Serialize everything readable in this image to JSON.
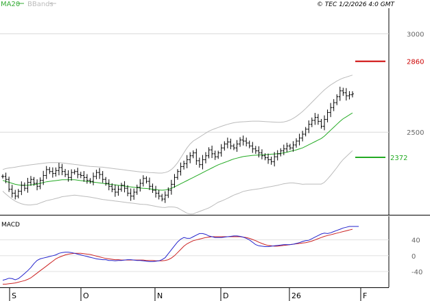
{
  "header": {
    "legend": [
      {
        "label": "MA20",
        "color": "#33aa33"
      },
      {
        "label": "BBands",
        "color": "#bbbbbb"
      }
    ],
    "source": "© TEC 1/2/2026 4:0 GMT"
  },
  "colors": {
    "candle": "#000000",
    "ma20": "#22aa22",
    "bbands": "#bbbbbb",
    "resistance": "#cc0000",
    "support": "#22aa22",
    "macd": "#2222cc",
    "signal": "#cc2222",
    "grid": "#d8d8d8",
    "axis": "#000000"
  },
  "chart_data": [
    {
      "type": "candlestick",
      "title": "",
      "x_labels": [
        "S",
        "O",
        "N",
        "D",
        "26",
        "F"
      ],
      "ylim": [
        2080,
        3130
      ],
      "yticks": [
        2500,
        3000
      ],
      "ytick_labels": [
        "2500",
        "3000"
      ],
      "levels": [
        {
          "name": "resistance",
          "value": 2860,
          "label": "2860"
        },
        {
          "name": "support",
          "value": 2372,
          "label": "2372"
        }
      ],
      "closes": [
        2275,
        2260,
        2210,
        2190,
        2175,
        2200,
        2230,
        2215,
        2245,
        2260,
        2240,
        2225,
        2255,
        2280,
        2310,
        2300,
        2290,
        2305,
        2320,
        2300,
        2285,
        2270,
        2295,
        2300,
        2285,
        2280,
        2270,
        2255,
        2250,
        2275,
        2295,
        2285,
        2260,
        2240,
        2225,
        2210,
        2195,
        2210,
        2230,
        2215,
        2190,
        2175,
        2195,
        2220,
        2240,
        2265,
        2250,
        2225,
        2205,
        2190,
        2175,
        2160,
        2180,
        2205,
        2235,
        2270,
        2300,
        2325,
        2340,
        2360,
        2380,
        2395,
        2355,
        2335,
        2360,
        2380,
        2410,
        2390,
        2375,
        2395,
        2420,
        2440,
        2450,
        2430,
        2420,
        2440,
        2460,
        2455,
        2445,
        2430,
        2415,
        2405,
        2395,
        2380,
        2370,
        2360,
        2350,
        2375,
        2390,
        2405,
        2415,
        2430,
        2420,
        2435,
        2455,
        2470,
        2490,
        2515,
        2540,
        2560,
        2575,
        2555,
        2530,
        2565,
        2600,
        2625,
        2650,
        2680,
        2710,
        2700,
        2685,
        2690,
        2695
      ],
      "ma20": [
        2255,
        2250,
        2245,
        2240,
        2235,
        2232,
        2230,
        2230,
        2230,
        2232,
        2234,
        2236,
        2240,
        2244,
        2248,
        2250,
        2252,
        2254,
        2256,
        2258,
        2258,
        2258,
        2258,
        2258,
        2256,
        2254,
        2252,
        2250,
        2248,
        2246,
        2244,
        2242,
        2240,
        2238,
        2236,
        2234,
        2232,
        2230,
        2228,
        2226,
        2224,
        2222,
        2220,
        2218,
        2216,
        2215,
        2214,
        2212,
        2210,
        2208,
        2206,
        2205,
        2206,
        2210,
        2215,
        2222,
        2230,
        2238,
        2246,
        2254,
        2262,
        2270,
        2278,
        2286,
        2294,
        2302,
        2310,
        2318,
        2326,
        2334,
        2340,
        2346,
        2352,
        2358,
        2364,
        2368,
        2372,
        2376,
        2378,
        2380,
        2382,
        2383,
        2384,
        2385,
        2386,
        2387,
        2388,
        2389,
        2390,
        2392,
        2395,
        2398,
        2402,
        2406,
        2410,
        2415,
        2420,
        2428,
        2436,
        2444,
        2452,
        2460,
        2468,
        2480,
        2495,
        2510,
        2525,
        2540,
        2555,
        2568,
        2578,
        2588,
        2598
      ],
      "bb_upper": [
        2310,
        2315,
        2318,
        2320,
        2322,
        2325,
        2328,
        2330,
        2332,
        2334,
        2336,
        2338,
        2340,
        2342,
        2344,
        2345,
        2345,
        2345,
        2345,
        2344,
        2342,
        2340,
        2338,
        2336,
        2334,
        2332,
        2330,
        2328,
        2326,
        2325,
        2324,
        2323,
        2322,
        2320,
        2318,
        2316,
        2314,
        2312,
        2310,
        2308,
        2306,
        2304,
        2302,
        2300,
        2298,
        2297,
        2296,
        2295,
        2294,
        2293,
        2292,
        2292,
        2295,
        2300,
        2310,
        2325,
        2345,
        2370,
        2395,
        2420,
        2440,
        2455,
        2465,
        2475,
        2485,
        2495,
        2505,
        2512,
        2518,
        2524,
        2530,
        2535,
        2540,
        2544,
        2548,
        2550,
        2552,
        2553,
        2554,
        2555,
        2556,
        2556,
        2556,
        2555,
        2554,
        2553,
        2552,
        2551,
        2550,
        2550,
        2552,
        2556,
        2562,
        2570,
        2580,
        2592,
        2605,
        2620,
        2636,
        2652,
        2668,
        2684,
        2700,
        2715,
        2728,
        2740,
        2750,
        2760,
        2768,
        2775,
        2780,
        2785,
        2790
      ],
      "bb_lower": [
        2200,
        2185,
        2172,
        2160,
        2150,
        2142,
        2136,
        2132,
        2130,
        2130,
        2132,
        2134,
        2140,
        2146,
        2152,
        2155,
        2159,
        2163,
        2167,
        2172,
        2174,
        2176,
        2178,
        2180,
        2178,
        2176,
        2174,
        2172,
        2170,
        2167,
        2164,
        2161,
        2158,
        2156,
        2154,
        2152,
        2150,
        2148,
        2146,
        2144,
        2142,
        2140,
        2138,
        2136,
        2134,
        2133,
        2132,
        2129,
        2126,
        2123,
        2120,
        2118,
        2117,
        2120,
        2120,
        2119,
        2115,
        2106,
        2097,
        2088,
        2084,
        2085,
        2091,
        2097,
        2103,
        2109,
        2115,
        2124,
        2134,
        2144,
        2150,
        2157,
        2164,
        2172,
        2180,
        2186,
        2192,
        2199,
        2202,
        2205,
        2208,
        2210,
        2212,
        2215,
        2218,
        2221,
        2224,
        2227,
        2230,
        2234,
        2238,
        2240,
        2242,
        2242,
        2240,
        2238,
        2235,
        2236,
        2236,
        2236,
        2236,
        2236,
        2236,
        2245,
        2262,
        2280,
        2300,
        2320,
        2342,
        2361,
        2376,
        2391,
        2406
      ],
      "y_label_units": "price"
    },
    {
      "type": "line",
      "title": "MACD",
      "ylim": [
        -80,
        100
      ],
      "yticks": [
        40,
        0,
        -40
      ],
      "ytick_labels": [
        "40",
        "0",
        "-40"
      ],
      "series": [
        {
          "name": "MACD",
          "color": "#2222cc",
          "values": [
            -62,
            -60,
            -57,
            -58,
            -61,
            -58,
            -52,
            -45,
            -38,
            -30,
            -20,
            -12,
            -8,
            -6,
            -4,
            -2,
            0,
            2,
            6,
            8,
            9,
            9,
            8,
            6,
            4,
            2,
            0,
            -2,
            -4,
            -6,
            -8,
            -9,
            -10,
            -10,
            -12,
            -12,
            -13,
            -12,
            -12,
            -11,
            -10,
            -10,
            -11,
            -12,
            -12,
            -13,
            -14,
            -15,
            -15,
            -14,
            -13,
            -10,
            -5,
            5,
            15,
            25,
            35,
            42,
            46,
            44,
            44,
            48,
            52,
            56,
            56,
            54,
            50,
            48,
            46,
            46,
            46,
            47,
            48,
            49,
            50,
            50,
            49,
            47,
            44,
            40,
            34,
            28,
            25,
            24,
            23,
            23,
            24,
            25,
            26,
            27,
            28,
            28,
            28,
            29,
            31,
            33,
            36,
            38,
            39,
            43,
            47,
            51,
            55,
            57,
            56,
            58,
            61,
            64,
            67,
            70,
            72,
            74,
            74,
            74,
            74
          ]
        },
        {
          "name": "Signal",
          "color": "#cc2222",
          "values": [
            -72,
            -72,
            -71,
            -70,
            -69,
            -67,
            -65,
            -63,
            -60,
            -56,
            -50,
            -44,
            -38,
            -32,
            -26,
            -20,
            -14,
            -8,
            -4,
            -1,
            2,
            4,
            5,
            6,
            6,
            6,
            5,
            4,
            3,
            1,
            -1,
            -3,
            -5,
            -7,
            -8,
            -9,
            -10,
            -10,
            -11,
            -11,
            -11,
            -11,
            -11,
            -11,
            -11,
            -11,
            -12,
            -12,
            -12,
            -13,
            -13,
            -13,
            -12,
            -10,
            -6,
            0,
            8,
            16,
            24,
            30,
            34,
            38,
            40,
            42,
            44,
            46,
            47,
            48,
            48,
            48,
            48,
            48,
            48,
            48,
            48,
            48,
            48,
            47,
            46,
            44,
            41,
            38,
            34,
            31,
            28,
            26,
            25,
            24,
            24,
            25,
            26,
            27,
            28,
            29,
            30,
            31,
            32,
            33,
            35,
            37,
            40,
            43,
            46,
            49,
            51,
            53,
            55,
            57,
            59,
            61,
            63,
            65,
            67
          ]
        }
      ]
    }
  ],
  "axis": {
    "price_labels": [
      "3000",
      "2500"
    ],
    "level_labels": [
      "2860",
      "2372"
    ],
    "macd_labels": [
      "40",
      "0",
      "-40"
    ],
    "time_labels": [
      "S",
      "O",
      "N",
      "D",
      "26",
      "F"
    ]
  }
}
